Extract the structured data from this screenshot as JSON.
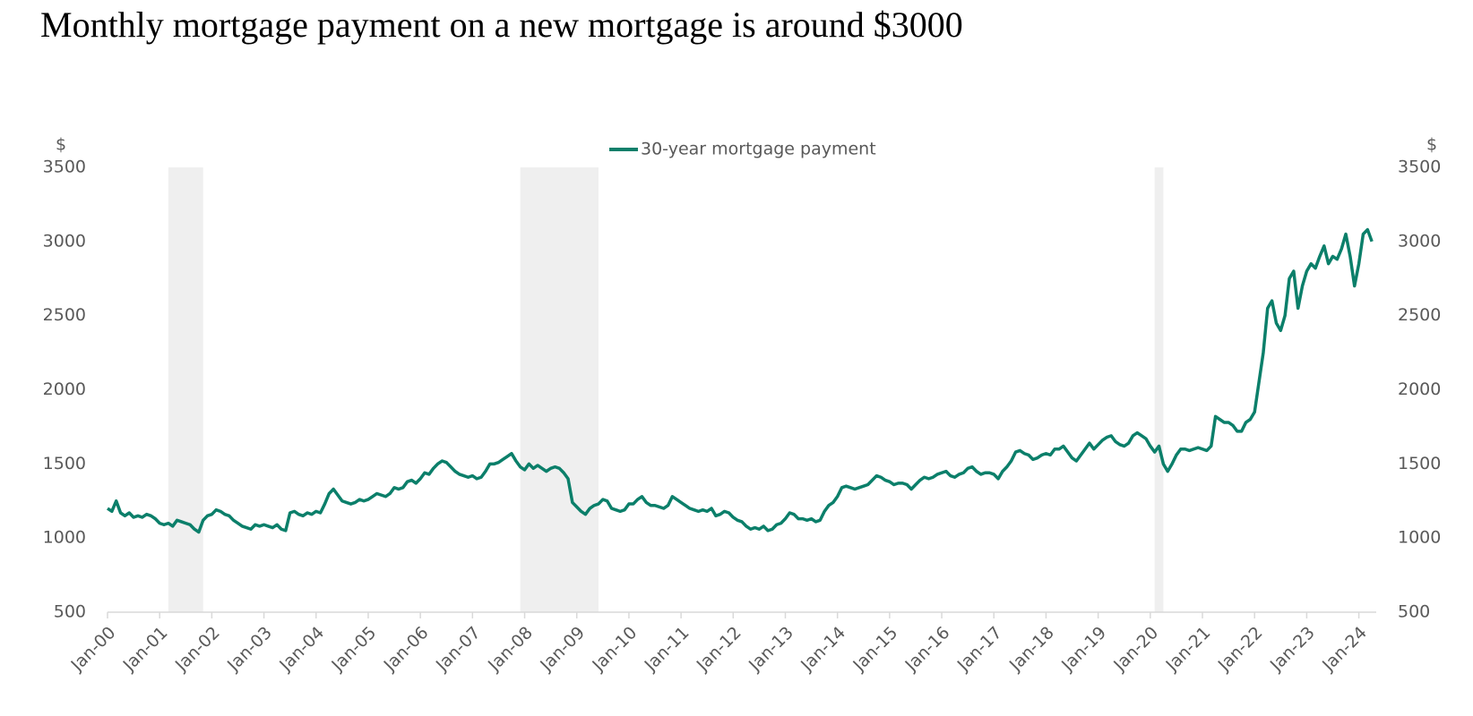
{
  "chart_data": {
    "type": "line",
    "title": "Monthly mortgage payment on a new mortgage is around $3000",
    "y_label": "$",
    "y2_label": "$",
    "x": [
      "2000-01",
      "2000-02",
      "2000-03",
      "2000-04",
      "2000-05",
      "2000-06",
      "2000-07",
      "2000-08",
      "2000-09",
      "2000-10",
      "2000-11",
      "2000-12",
      "2001-01",
      "2001-02",
      "2001-03",
      "2001-04",
      "2001-05",
      "2001-06",
      "2001-07",
      "2001-08",
      "2001-09",
      "2001-10",
      "2001-11",
      "2001-12",
      "2002-01",
      "2002-02",
      "2002-03",
      "2002-04",
      "2002-05",
      "2002-06",
      "2002-07",
      "2002-08",
      "2002-09",
      "2002-10",
      "2002-11",
      "2002-12",
      "2003-01",
      "2003-02",
      "2003-03",
      "2003-04",
      "2003-05",
      "2003-06",
      "2003-07",
      "2003-08",
      "2003-09",
      "2003-10",
      "2003-11",
      "2003-12",
      "2004-01",
      "2004-02",
      "2004-03",
      "2004-04",
      "2004-05",
      "2004-06",
      "2004-07",
      "2004-08",
      "2004-09",
      "2004-10",
      "2004-11",
      "2004-12",
      "2005-01",
      "2005-02",
      "2005-03",
      "2005-04",
      "2005-05",
      "2005-06",
      "2005-07",
      "2005-08",
      "2005-09",
      "2005-10",
      "2005-11",
      "2005-12",
      "2006-01",
      "2006-02",
      "2006-03",
      "2006-04",
      "2006-05",
      "2006-06",
      "2006-07",
      "2006-08",
      "2006-09",
      "2006-10",
      "2006-11",
      "2006-12",
      "2007-01",
      "2007-02",
      "2007-03",
      "2007-04",
      "2007-05",
      "2007-06",
      "2007-07",
      "2007-08",
      "2007-09",
      "2007-10",
      "2007-11",
      "2007-12",
      "2008-01",
      "2008-02",
      "2008-03",
      "2008-04",
      "2008-05",
      "2008-06",
      "2008-07",
      "2008-08",
      "2008-09",
      "2008-10",
      "2008-11",
      "2008-12",
      "2009-01",
      "2009-02",
      "2009-03",
      "2009-04",
      "2009-05",
      "2009-06",
      "2009-07",
      "2009-08",
      "2009-09",
      "2009-10",
      "2009-11",
      "2009-12",
      "2010-01",
      "2010-02",
      "2010-03",
      "2010-04",
      "2010-05",
      "2010-06",
      "2010-07",
      "2010-08",
      "2010-09",
      "2010-10",
      "2010-11",
      "2010-12",
      "2011-01",
      "2011-02",
      "2011-03",
      "2011-04",
      "2011-05",
      "2011-06",
      "2011-07",
      "2011-08",
      "2011-09",
      "2011-10",
      "2011-11",
      "2011-12",
      "2012-01",
      "2012-02",
      "2012-03",
      "2012-04",
      "2012-05",
      "2012-06",
      "2012-07",
      "2012-08",
      "2012-09",
      "2012-10",
      "2012-11",
      "2012-12",
      "2013-01",
      "2013-02",
      "2013-03",
      "2013-04",
      "2013-05",
      "2013-06",
      "2013-07",
      "2013-08",
      "2013-09",
      "2013-10",
      "2013-11",
      "2013-12",
      "2014-01",
      "2014-02",
      "2014-03",
      "2014-04",
      "2014-05",
      "2014-06",
      "2014-07",
      "2014-08",
      "2014-09",
      "2014-10",
      "2014-11",
      "2014-12",
      "2015-01",
      "2015-02",
      "2015-03",
      "2015-04",
      "2015-05",
      "2015-06",
      "2015-07",
      "2015-08",
      "2015-09",
      "2015-10",
      "2015-11",
      "2015-12",
      "2016-01",
      "2016-02",
      "2016-03",
      "2016-04",
      "2016-05",
      "2016-06",
      "2016-07",
      "2016-08",
      "2016-09",
      "2016-10",
      "2016-11",
      "2016-12",
      "2017-01",
      "2017-02",
      "2017-03",
      "2017-04",
      "2017-05",
      "2017-06",
      "2017-07",
      "2017-08",
      "2017-09",
      "2017-10",
      "2017-11",
      "2017-12",
      "2018-01",
      "2018-02",
      "2018-03",
      "2018-04",
      "2018-05",
      "2018-06",
      "2018-07",
      "2018-08",
      "2018-09",
      "2018-10",
      "2018-11",
      "2018-12",
      "2019-01",
      "2019-02",
      "2019-03",
      "2019-04",
      "2019-05",
      "2019-06",
      "2019-07",
      "2019-08",
      "2019-09",
      "2019-10",
      "2019-11",
      "2019-12",
      "2020-01",
      "2020-02",
      "2020-03",
      "2020-04",
      "2020-05",
      "2020-06",
      "2020-07",
      "2020-08",
      "2020-09",
      "2020-10",
      "2020-11",
      "2020-12",
      "2021-01",
      "2021-02",
      "2021-03",
      "2021-04",
      "2021-05",
      "2021-06",
      "2021-07",
      "2021-08",
      "2021-09",
      "2021-10",
      "2021-11",
      "2021-12",
      "2022-01",
      "2022-02",
      "2022-03",
      "2022-04",
      "2022-05",
      "2022-06",
      "2022-07",
      "2022-08",
      "2022-09",
      "2022-10",
      "2022-11",
      "2022-12",
      "2023-01",
      "2023-02",
      "2023-03",
      "2023-04",
      "2023-05",
      "2023-06",
      "2023-07",
      "2023-08",
      "2023-09",
      "2023-10",
      "2023-11",
      "2023-12",
      "2024-01",
      "2024-02",
      "2024-03",
      "2024-04"
    ],
    "series": [
      {
        "name": "30-year mortgage payment",
        "color": "#0b7f6a",
        "values": [
          1200,
          1180,
          1250,
          1170,
          1150,
          1170,
          1140,
          1150,
          1140,
          1160,
          1150,
          1130,
          1100,
          1090,
          1100,
          1080,
          1120,
          1110,
          1100,
          1090,
          1060,
          1040,
          1120,
          1150,
          1160,
          1190,
          1180,
          1160,
          1150,
          1120,
          1100,
          1080,
          1070,
          1060,
          1090,
          1080,
          1090,
          1080,
          1070,
          1090,
          1060,
          1050,
          1170,
          1180,
          1160,
          1150,
          1170,
          1160,
          1180,
          1170,
          1230,
          1300,
          1330,
          1290,
          1250,
          1240,
          1230,
          1240,
          1260,
          1250,
          1260,
          1280,
          1300,
          1290,
          1280,
          1300,
          1340,
          1330,
          1340,
          1380,
          1390,
          1370,
          1400,
          1440,
          1430,
          1470,
          1500,
          1520,
          1510,
          1480,
          1450,
          1430,
          1420,
          1410,
          1420,
          1400,
          1410,
          1450,
          1500,
          1500,
          1510,
          1530,
          1550,
          1570,
          1520,
          1480,
          1460,
          1500,
          1470,
          1490,
          1470,
          1450,
          1470,
          1480,
          1470,
          1440,
          1400,
          1240,
          1210,
          1180,
          1160,
          1200,
          1220,
          1230,
          1260,
          1250,
          1200,
          1190,
          1180,
          1190,
          1230,
          1230,
          1260,
          1280,
          1240,
          1220,
          1220,
          1210,
          1200,
          1220,
          1280,
          1260,
          1240,
          1220,
          1200,
          1190,
          1180,
          1190,
          1180,
          1200,
          1150,
          1160,
          1180,
          1170,
          1140,
          1120,
          1110,
          1080,
          1060,
          1070,
          1060,
          1080,
          1050,
          1060,
          1090,
          1100,
          1130,
          1170,
          1160,
          1130,
          1130,
          1120,
          1130,
          1110,
          1120,
          1180,
          1220,
          1240,
          1280,
          1340,
          1350,
          1340,
          1330,
          1340,
          1350,
          1360,
          1390,
          1420,
          1410,
          1390,
          1380,
          1360,
          1370,
          1370,
          1360,
          1330,
          1360,
          1390,
          1410,
          1400,
          1410,
          1430,
          1440,
          1450,
          1420,
          1410,
          1430,
          1440,
          1470,
          1480,
          1450,
          1430,
          1440,
          1440,
          1430,
          1400,
          1450,
          1480,
          1520,
          1580,
          1590,
          1570,
          1560,
          1530,
          1540,
          1560,
          1570,
          1560,
          1600,
          1600,
          1620,
          1580,
          1540,
          1520,
          1560,
          1600,
          1640,
          1600,
          1630,
          1660,
          1680,
          1690,
          1650,
          1630,
          1620,
          1640,
          1690,
          1710,
          1690,
          1670,
          1620,
          1580,
          1620,
          1500,
          1450,
          1500,
          1560,
          1600,
          1600,
          1590,
          1600,
          1610,
          1600,
          1590,
          1620,
          1820,
          1800,
          1780,
          1780,
          1760,
          1720,
          1720,
          1780,
          1800,
          1850,
          2050,
          2250,
          2550,
          2600,
          2450,
          2400,
          2500,
          2750,
          2800,
          2550,
          2700,
          2800,
          2850,
          2820,
          2900,
          2970,
          2850,
          2900,
          2880,
          2950,
          3050,
          2900,
          2700,
          2850,
          3050,
          3080,
          3000
        ]
      }
    ],
    "shaded_periods": [
      {
        "start": "2001-03",
        "end": "2001-11"
      },
      {
        "start": "2007-12",
        "end": "2009-06"
      },
      {
        "start": "2020-02",
        "end": "2020-04"
      }
    ],
    "xlim": [
      "2000-01",
      "2024-05"
    ],
    "xticks": [
      {
        "value": "2000-01",
        "label": "Jan-00"
      },
      {
        "value": "2001-01",
        "label": "Jan-01"
      },
      {
        "value": "2002-01",
        "label": "Jan-02"
      },
      {
        "value": "2003-01",
        "label": "Jan-03"
      },
      {
        "value": "2004-01",
        "label": "Jan-04"
      },
      {
        "value": "2005-01",
        "label": "Jan-05"
      },
      {
        "value": "2006-01",
        "label": "Jan-06"
      },
      {
        "value": "2007-01",
        "label": "Jan-07"
      },
      {
        "value": "2008-01",
        "label": "Jan-08"
      },
      {
        "value": "2009-01",
        "label": "Jan-09"
      },
      {
        "value": "2010-01",
        "label": "Jan-10"
      },
      {
        "value": "2011-01",
        "label": "Jan-11"
      },
      {
        "value": "2012-01",
        "label": "Jan-12"
      },
      {
        "value": "2013-01",
        "label": "Jan-13"
      },
      {
        "value": "2014-01",
        "label": "Jan-14"
      },
      {
        "value": "2015-01",
        "label": "Jan-15"
      },
      {
        "value": "2016-01",
        "label": "Jan-16"
      },
      {
        "value": "2017-01",
        "label": "Jan-17"
      },
      {
        "value": "2018-01",
        "label": "Jan-18"
      },
      {
        "value": "2019-01",
        "label": "Jan-19"
      },
      {
        "value": "2020-01",
        "label": "Jan-20"
      },
      {
        "value": "2021-01",
        "label": "Jan-21"
      },
      {
        "value": "2022-01",
        "label": "Jan-22"
      },
      {
        "value": "2023-01",
        "label": "Jan-23"
      },
      {
        "value": "2024-01",
        "label": "Jan-24"
      }
    ],
    "ylim": [
      500,
      3500
    ],
    "yticks": [
      500,
      1000,
      1500,
      2000,
      2500,
      3000,
      3500
    ],
    "y2lim": [
      500,
      3500
    ],
    "y2ticks": [
      500,
      1000,
      1500,
      2000,
      2500,
      3000,
      3500
    ],
    "grid": false,
    "legend": "top"
  }
}
